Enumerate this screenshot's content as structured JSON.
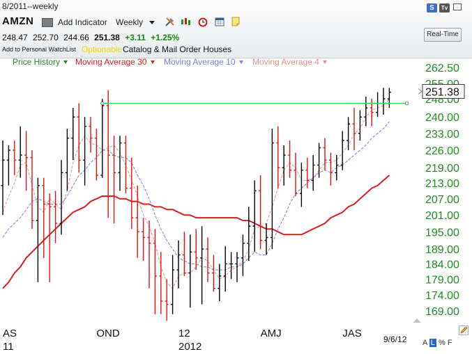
{
  "header": {
    "range_text": "8/2011--weekly",
    "symbol": "AMZN",
    "watchlist_link": "Add to Personal WatchList",
    "optionable": "Optionable",
    "industry": "Catalog & Mail Order Houses"
  },
  "toolbar": {
    "add_indicator": "Add Indicator",
    "period": "Weekly",
    "realtime": "Real-Time"
  },
  "quote": {
    "open": "248.47",
    "high": "252.70",
    "low": "244.66",
    "last": "251.38",
    "change": "+3.11",
    "change_pct": "+1.25%"
  },
  "colors": {
    "up_bar": "#000000",
    "down_bar": "#e01010",
    "price_history": "#1e8c1e",
    "ma30": "#d81e1e",
    "ma10": "#7b7be6",
    "ma4": "#ee8c8c",
    "trendline": "#3ddc3d",
    "axis_text": "#1e8c1e"
  },
  "scale_controls": [
    "A",
    "L",
    "%",
    "F"
  ],
  "chart_data": {
    "type": "ohlc",
    "title": "AMZN",
    "legend": [
      {
        "name": "Price History",
        "color": "#1e8c1e",
        "dash": "none"
      },
      {
        "name": "Moving Average 30",
        "color": "#d81e1e",
        "dash": "none"
      },
      {
        "name": "Moving Average 10",
        "color": "#7b7be6",
        "dash": "dash"
      },
      {
        "name": "Moving Average 4",
        "color": "#ee8c8c",
        "dash": "dash"
      }
    ],
    "y_scale": "log",
    "y_range": [
      164,
      268
    ],
    "y_ticks": [
      "262.50",
      "255.00",
      "248.00",
      "240.00",
      "233.00",
      "226.00",
      "219.00",
      "213.00",
      "207.00",
      "201.00",
      "195.00",
      "189.00",
      "184.00",
      "179.00",
      "174.00",
      "169.00"
    ],
    "last_price_label": "251.38",
    "x_labels": [
      {
        "text": "AS",
        "week": 0
      },
      {
        "text": "OND",
        "week": 16
      },
      {
        "text": "12",
        "week": 30
      },
      {
        "text": "AMJ",
        "week": 44
      },
      {
        "text": "JAS",
        "week": 58
      }
    ],
    "x_year_labels": [
      {
        "text": "11",
        "week": 0
      },
      {
        "text": "2012",
        "week": 30
      }
    ],
    "date_label": "9/6/12",
    "weeks": 68,
    "ohlc": [
      [
        212,
        230,
        201,
        222
      ],
      [
        222,
        228,
        212,
        226
      ],
      [
        226,
        230,
        216,
        222
      ],
      [
        222,
        236,
        215,
        224
      ],
      [
        224,
        234,
        210,
        223
      ],
      [
        223,
        226,
        196,
        199
      ],
      [
        199,
        215,
        178,
        212
      ],
      [
        212,
        215,
        186,
        205
      ],
      [
        205,
        209,
        178,
        204
      ],
      [
        204,
        210,
        191,
        198
      ],
      [
        198,
        222,
        194,
        217
      ],
      [
        217,
        235,
        210,
        231
      ],
      [
        231,
        244,
        222,
        240
      ],
      [
        240,
        246,
        217,
        222
      ],
      [
        222,
        240,
        212,
        236
      ],
      [
        236,
        240,
        225,
        231
      ],
      [
        231,
        235,
        214,
        216
      ],
      [
        216,
        248,
        215,
        245
      ],
      [
        245,
        252,
        200,
        224
      ],
      [
        224,
        232,
        198,
        217
      ],
      [
        217,
        232,
        210,
        229
      ],
      [
        229,
        232,
        209,
        211
      ],
      [
        211,
        223,
        196,
        200
      ],
      [
        200,
        212,
        186,
        195
      ],
      [
        195,
        200,
        185,
        193
      ],
      [
        193,
        199,
        176,
        191
      ],
      [
        191,
        196,
        168,
        180
      ],
      [
        180,
        188,
        168,
        172
      ],
      [
        172,
        179,
        166,
        171
      ],
      [
        171,
        187,
        168,
        182
      ],
      [
        182,
        192,
        176,
        187
      ],
      [
        187,
        195,
        180,
        181
      ],
      [
        181,
        194,
        170,
        188
      ],
      [
        188,
        196,
        182,
        186
      ],
      [
        186,
        197,
        171,
        189
      ],
      [
        189,
        193,
        178,
        181
      ],
      [
        181,
        187,
        175,
        176
      ],
      [
        176,
        184,
        172,
        180
      ],
      [
        180,
        190,
        175,
        184
      ],
      [
        184,
        188,
        179,
        184
      ],
      [
        184,
        188,
        178,
        186
      ],
      [
        186,
        194,
        180,
        191
      ],
      [
        191,
        204,
        185,
        197
      ],
      [
        197,
        214,
        188,
        210
      ],
      [
        210,
        216,
        189,
        192
      ],
      [
        192,
        198,
        187,
        193
      ],
      [
        193,
        235,
        189,
        229
      ],
      [
        229,
        236,
        211,
        219
      ],
      [
        219,
        228,
        212,
        224
      ],
      [
        224,
        230,
        215,
        218
      ],
      [
        218,
        225,
        208,
        209
      ],
      [
        209,
        221,
        204,
        218
      ],
      [
        218,
        223,
        211,
        214
      ],
      [
        214,
        224,
        210,
        220
      ],
      [
        220,
        229,
        215,
        227
      ],
      [
        227,
        231,
        218,
        222
      ],
      [
        222,
        225,
        212,
        217
      ],
      [
        217,
        224,
        214,
        220
      ],
      [
        220,
        234,
        218,
        230
      ],
      [
        230,
        240,
        226,
        237
      ],
      [
        237,
        244,
        226,
        233
      ],
      [
        233,
        243,
        230,
        240
      ],
      [
        240,
        249,
        236,
        244
      ],
      [
        244,
        248,
        236,
        242
      ],
      [
        242,
        251,
        240,
        246
      ],
      [
        246,
        253,
        241,
        248
      ],
      [
        248,
        253,
        244,
        251
      ]
    ],
    "ma30": [
      176,
      178,
      181,
      183,
      186,
      188,
      190,
      192,
      194,
      196,
      198,
      200,
      202,
      203,
      204,
      206,
      207,
      208,
      208,
      208,
      207,
      207,
      206,
      206,
      205,
      205,
      204,
      204,
      203,
      203,
      202,
      201,
      201,
      200,
      200,
      200,
      200,
      200,
      200,
      200,
      200,
      199,
      199,
      198,
      197,
      196,
      196,
      195,
      194,
      194,
      194,
      194,
      195,
      196,
      197,
      198,
      200,
      201,
      202,
      204,
      205,
      207,
      209,
      211,
      212,
      214,
      216
    ],
    "ma10": [
      193,
      196,
      198,
      200,
      203,
      206,
      207,
      206,
      205,
      205,
      205,
      208,
      212,
      216,
      218,
      221,
      223,
      226,
      226,
      224,
      223,
      223,
      221,
      216,
      212,
      207,
      201,
      196,
      192,
      189,
      186,
      185,
      184,
      184,
      183,
      183,
      182,
      182,
      182,
      183,
      183,
      184,
      186,
      188,
      187,
      187,
      191,
      196,
      200,
      205,
      209,
      211,
      213,
      215,
      217,
      218,
      217,
      219,
      220,
      222,
      224,
      226,
      228,
      231,
      233,
      235,
      238
    ],
    "ma4": [
      202,
      208,
      213,
      220,
      221,
      212,
      204,
      202,
      207,
      205,
      203,
      210,
      221,
      228,
      232,
      229,
      228,
      226,
      227,
      228,
      225,
      220,
      214,
      208,
      201,
      197,
      191,
      183,
      178,
      176,
      180,
      181,
      181,
      183,
      186,
      185,
      182,
      179,
      180,
      182,
      183,
      185,
      189,
      196,
      197,
      198,
      204,
      211,
      218,
      221,
      219,
      214,
      214,
      215,
      218,
      221,
      221,
      222,
      225,
      228,
      233,
      235,
      240,
      243,
      244,
      245,
      248
    ],
    "trendline": {
      "value": 246,
      "from_week": 17,
      "to_week": 69
    }
  }
}
